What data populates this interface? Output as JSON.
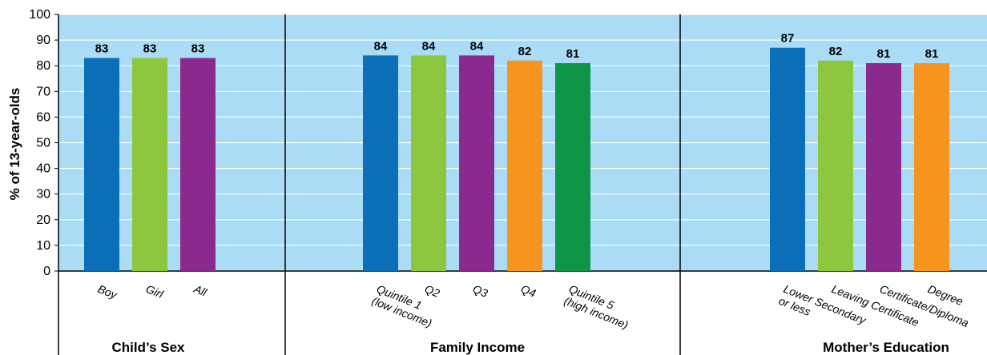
{
  "chart_data": {
    "type": "bar",
    "ylabel": "% of 13-year-olds",
    "ylim": [
      0,
      100
    ],
    "yticks": [
      0,
      10,
      20,
      30,
      40,
      50,
      60,
      70,
      80,
      90,
      100
    ],
    "grid": true,
    "colors": {
      "plot_background": "#aadcf6",
      "blue": "#0a6fb8",
      "light_green": "#8dc63f",
      "purple": "#8b2a8e",
      "orange": "#f7941d",
      "dark_green": "#0e9548"
    },
    "groups": [
      {
        "name": "Child’s Sex",
        "bars": [
          {
            "category": [
              "Boy"
            ],
            "value": 83,
            "color": "blue"
          },
          {
            "category": [
              "Girl"
            ],
            "value": 83,
            "color": "light_green"
          },
          {
            "category": [
              "All"
            ],
            "value": 83,
            "color": "purple"
          }
        ]
      },
      {
        "name": "Family Income",
        "bars": [
          {
            "category": [
              "Quintile 1",
              "(low income)"
            ],
            "value": 84,
            "color": "blue"
          },
          {
            "category": [
              "Q2"
            ],
            "value": 84,
            "color": "light_green"
          },
          {
            "category": [
              "Q3"
            ],
            "value": 84,
            "color": "purple"
          },
          {
            "category": [
              "Q4"
            ],
            "value": 82,
            "color": "orange"
          },
          {
            "category": [
              "Quintile 5",
              "(high income)"
            ],
            "value": 81,
            "color": "dark_green"
          }
        ]
      },
      {
        "name": "Mother’s Education",
        "bars": [
          {
            "category": [
              "Lower Secondary",
              "or less"
            ],
            "value": 87,
            "color": "blue"
          },
          {
            "category": [
              "Leaving Certificate"
            ],
            "value": 82,
            "color": "light_green"
          },
          {
            "category": [
              "Certificate/Diploma"
            ],
            "value": 81,
            "color": "purple"
          },
          {
            "category": [
              "Degree"
            ],
            "value": 81,
            "color": "orange"
          }
        ]
      }
    ]
  }
}
